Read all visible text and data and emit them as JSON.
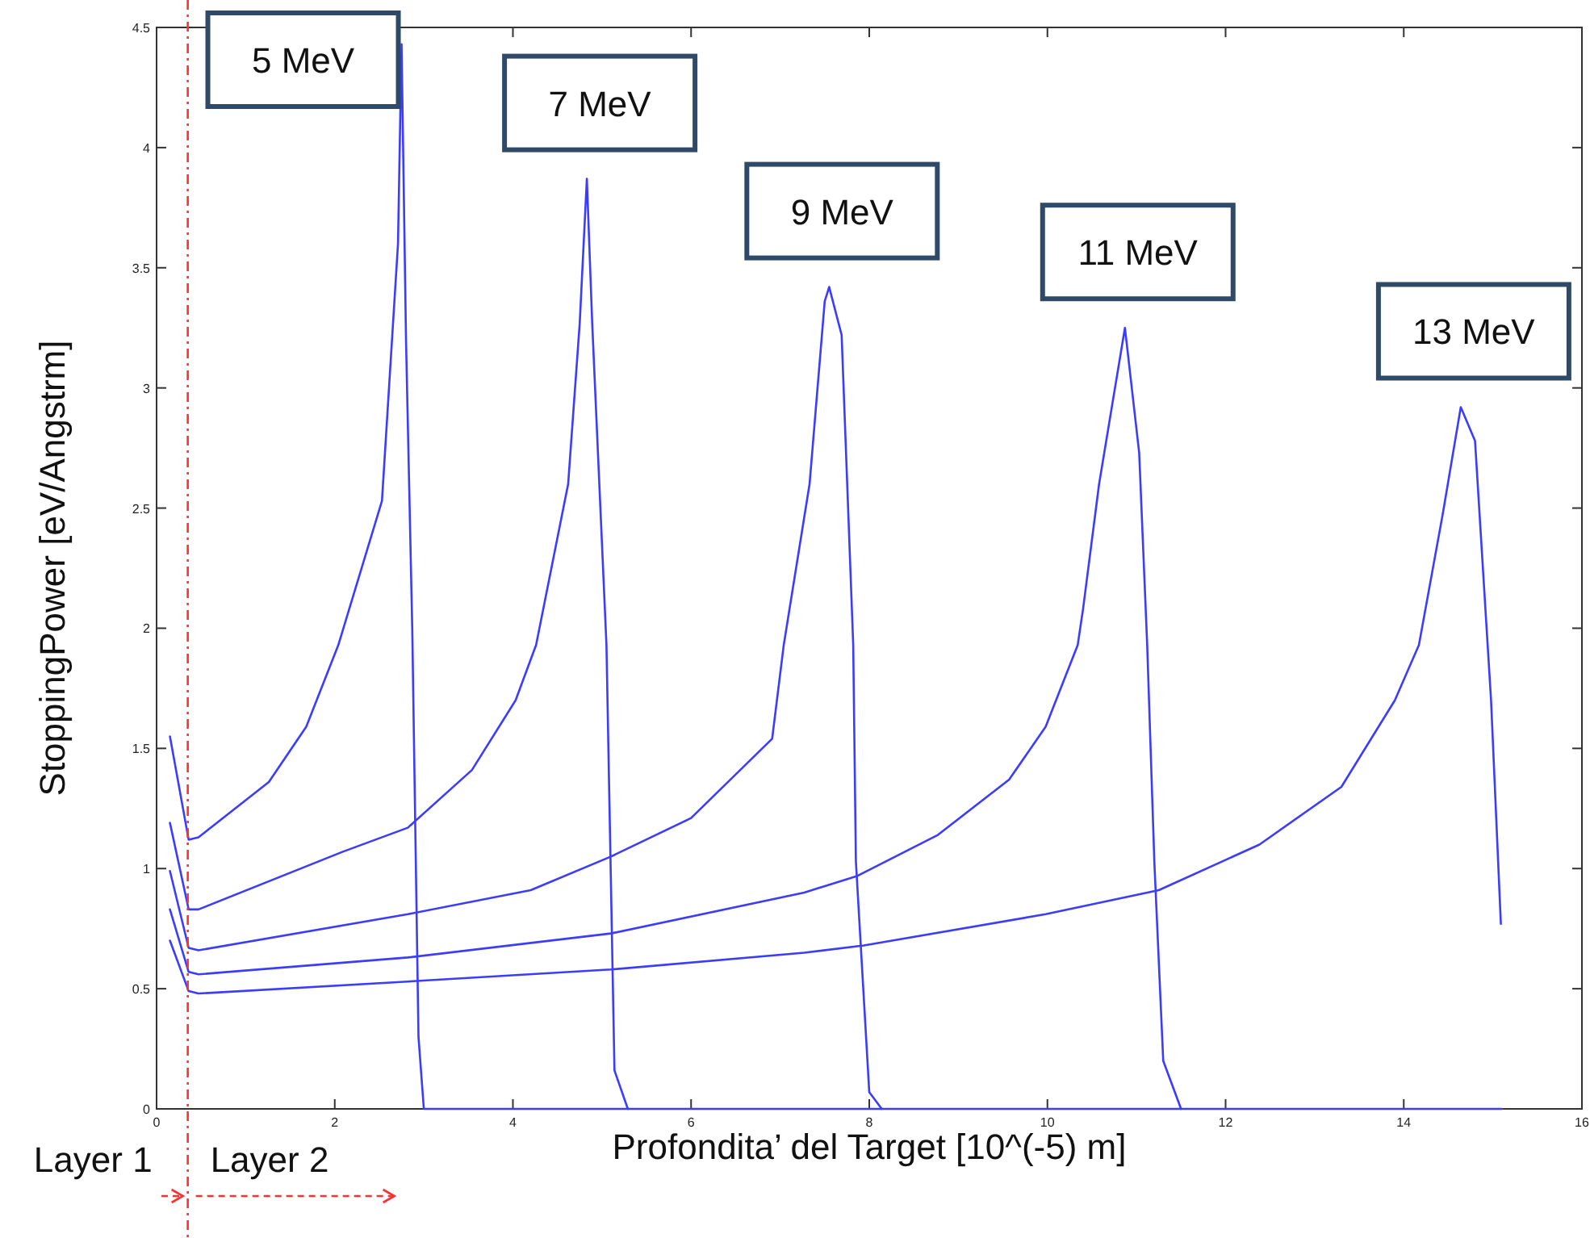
{
  "chart_data": {
    "type": "line",
    "xlabel": "Profondita’ del Target [10^(-5)  m]",
    "ylabel": "StoppingPower  [eV/Angstrm]",
    "xlim": [
      0,
      16
    ],
    "xticks": [
      0,
      2,
      4,
      6,
      8,
      10,
      12,
      14,
      16
    ],
    "ylim": [
      0,
      4.5
    ],
    "yticks": [
      0,
      0.5,
      1,
      1.5,
      2,
      2.5,
      3,
      3.5,
      4,
      4.5
    ],
    "grid": false,
    "marker": "none",
    "line_style": "solid",
    "ref_lines": [
      {
        "axis": "x",
        "value": 0.35,
        "color": "#ff3030",
        "line_style": "dashdot"
      }
    ],
    "annotations": [
      "Layer 1",
      "Layer 2"
    ],
    "series": [
      {
        "name": "5 MeV",
        "color": "#3c3cff",
        "x": [
          0.15,
          0.36,
          0.47,
          1.26,
          1.68,
          2.04,
          2.53,
          2.71,
          2.75,
          2.8,
          2.87,
          2.94,
          3.0,
          15.1
        ],
        "values": [
          1.55,
          1.12,
          1.13,
          1.36,
          1.59,
          1.93,
          2.53,
          3.6,
          4.43,
          3.2,
          2.0,
          0.3,
          0,
          0
        ]
      },
      {
        "name": "7 MeV",
        "color": "#3c3cff",
        "x": [
          0.15,
          0.36,
          0.47,
          2.09,
          2.82,
          3.54,
          4.03,
          4.26,
          4.62,
          4.75,
          4.83,
          4.89,
          5.05,
          5.14,
          5.29
        ],
        "values": [
          1.19,
          0.83,
          0.83,
          1.07,
          1.17,
          1.41,
          1.7,
          1.93,
          2.6,
          3.27,
          3.87,
          3.27,
          1.93,
          0.16,
          0
        ]
      },
      {
        "name": "9 MeV",
        "color": "#3c3cff",
        "x": [
          0.15,
          0.36,
          0.47,
          2.82,
          4.2,
          5.1,
          6.0,
          6.91,
          7.04,
          7.33,
          7.5,
          7.55,
          7.69,
          7.82,
          7.85,
          8.0,
          8.14
        ],
        "values": [
          0.99,
          0.67,
          0.66,
          0.81,
          0.91,
          1.05,
          1.21,
          1.54,
          1.93,
          2.6,
          3.36,
          3.42,
          3.22,
          1.93,
          1.03,
          0.07,
          0
        ]
      },
      {
        "name": "11 MeV",
        "color": "#3c3cff",
        "x": [
          0.15,
          0.36,
          0.47,
          2.82,
          5.1,
          7.27,
          7.87,
          8.77,
          9.57,
          9.98,
          10.34,
          10.4,
          10.58,
          10.87,
          11.03,
          11.12,
          11.2,
          11.3,
          11.5
        ],
        "values": [
          0.83,
          0.57,
          0.56,
          0.63,
          0.73,
          0.9,
          0.97,
          1.14,
          1.37,
          1.59,
          1.93,
          2.08,
          2.6,
          3.25,
          2.73,
          1.93,
          1.03,
          0.2,
          0
        ]
      },
      {
        "name": "13 MeV",
        "color": "#3c3cff",
        "x": [
          0.15,
          0.36,
          0.47,
          2.82,
          5.1,
          7.27,
          7.94,
          9.98,
          11.25,
          12.38,
          13.3,
          13.9,
          14.17,
          14.44,
          14.64,
          14.8,
          14.98,
          15.09
        ],
        "values": [
          0.7,
          0.49,
          0.48,
          0.53,
          0.58,
          0.65,
          0.68,
          0.81,
          0.91,
          1.1,
          1.34,
          1.7,
          1.93,
          2.48,
          2.92,
          2.78,
          1.7,
          0.77
        ]
      }
    ]
  }
}
